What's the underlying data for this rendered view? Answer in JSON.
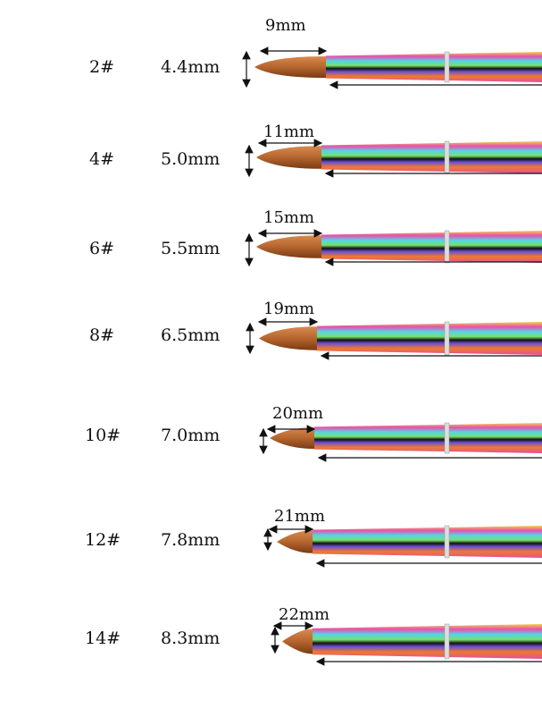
{
  "rows": [
    {
      "size": "2#",
      "diameter": "4.4mm",
      "tip_length": "9mm"
    },
    {
      "size": "4#",
      "diameter": "5.0mm",
      "tip_length": "11mm"
    },
    {
      "size": "6#",
      "diameter": "5.5mm",
      "tip_length": "15mm"
    },
    {
      "size": "8#",
      "diameter": "6.5mm",
      "tip_length": "19mm"
    },
    {
      "size": "10#",
      "diameter": "7.0mm",
      "tip_length": "20mm"
    },
    {
      "size": "12#",
      "diameter": "7.8mm",
      "tip_length": "21mm"
    },
    {
      "size": "14#",
      "diameter": "8.3mm",
      "tip_length": "22mm"
    }
  ],
  "colors": {
    "bristle": "#b5652e",
    "text": "#111111"
  }
}
